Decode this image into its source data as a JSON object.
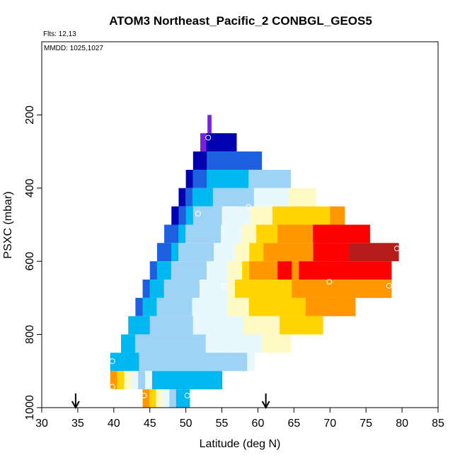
{
  "chart_data": {
    "type": "heatmap",
    "title": "ATOM3 Northeast_Pacific_2 CONBGL_GEOS5",
    "subtitle_flights": "Flts: 12,13",
    "subtitle_dates": "MMDD: 1025,1027",
    "xlabel": "Latitude (deg N)",
    "ylabel": "PSXC (mbar)",
    "xlim": [
      30,
      85
    ],
    "ylim": [
      1000,
      0
    ],
    "x_ticks": [
      30,
      35,
      40,
      45,
      50,
      55,
      60,
      65,
      70,
      75,
      80,
      85
    ],
    "y_ticks": [
      200,
      400,
      600,
      800,
      1000
    ],
    "flight_arrows_lat": [
      34.7,
      61.1
    ],
    "color_stops": [
      "#b71c1c",
      "#ff0000",
      "#ff9800",
      "#ffd400",
      "#fff9c4",
      "#e8f8ff",
      "#9fd3f5",
      "#00b8f0",
      "#1e5fe0",
      "#0000b0",
      "#7b1fe0"
    ],
    "rows": [
      {
        "p_top": 200,
        "p_bot": 250,
        "lat_start": 53.0,
        "lat_end": 53.5,
        "values": [
          10
        ]
      },
      {
        "p_top": 250,
        "p_bot": 300,
        "lat_start": 52.0,
        "lat_end": 57.0,
        "values": [
          10,
          9,
          9,
          9,
          9,
          9
        ]
      },
      {
        "p_top": 300,
        "p_bot": 350,
        "lat_start": 51.0,
        "lat_end": 60.5,
        "values": [
          9,
          9,
          8,
          8,
          8,
          8,
          8,
          8,
          8,
          8
        ]
      },
      {
        "p_top": 350,
        "p_bot": 400,
        "lat_start": 50.0,
        "lat_end": 64.5,
        "values": [
          9,
          8,
          8,
          7,
          7,
          7,
          7,
          7,
          7,
          6,
          6,
          6,
          6,
          6,
          6
        ]
      },
      {
        "p_top": 400,
        "p_bot": 450,
        "lat_start": 49.0,
        "lat_end": 68.0,
        "values": [
          9,
          8,
          7,
          7,
          7,
          6,
          6,
          6,
          6,
          6,
          6,
          5,
          5,
          5,
          5,
          5,
          4,
          4,
          4,
          4
        ]
      },
      {
        "p_top": 450,
        "p_bot": 500,
        "lat_start": 48.0,
        "lat_end": 72.0,
        "values": [
          9,
          8,
          7,
          6,
          6,
          6,
          6,
          5,
          5,
          5,
          5,
          4,
          4,
          4,
          3,
          3,
          3,
          3,
          3,
          3,
          3,
          3,
          2,
          2
        ]
      },
      {
        "p_top": 500,
        "p_bot": 550,
        "lat_start": 47.0,
        "lat_end": 75.5,
        "values": [
          8,
          8,
          7,
          6,
          6,
          6,
          6,
          6,
          5,
          5,
          5,
          4,
          4,
          3,
          3,
          3,
          2,
          2,
          2,
          2,
          2,
          1,
          1,
          1,
          1,
          1,
          1,
          1,
          1
        ]
      },
      {
        "p_top": 550,
        "p_bot": 600,
        "lat_start": 46.0,
        "lat_end": 79.5,
        "values": [
          8,
          8,
          7,
          6,
          6,
          6,
          6,
          6,
          5,
          5,
          5,
          4,
          4,
          3,
          3,
          2,
          2,
          2,
          2,
          2,
          2,
          2,
          1,
          1,
          1,
          1,
          1,
          0,
          0,
          0,
          0,
          0,
          0,
          0
        ]
      },
      {
        "p_top": 600,
        "p_bot": 650,
        "lat_start": 45.0,
        "lat_end": 78.5,
        "values": [
          8,
          7,
          7,
          6,
          6,
          6,
          6,
          6,
          5,
          5,
          5,
          4,
          4,
          3,
          2,
          2,
          2,
          2,
          1,
          1,
          2,
          1,
          1,
          1,
          1,
          1,
          1,
          1,
          1,
          1,
          1,
          1,
          1,
          1
        ]
      },
      {
        "p_top": 650,
        "p_bot": 700,
        "lat_start": 44.0,
        "lat_end": 78.5,
        "values": [
          8,
          7,
          7,
          6,
          6,
          6,
          6,
          6,
          5,
          5,
          5,
          5,
          4,
          3,
          3,
          3,
          3,
          3,
          3,
          3,
          3,
          2,
          2,
          2,
          2,
          2,
          2,
          2,
          2,
          2,
          2,
          2,
          2,
          2,
          2
        ]
      },
      {
        "p_top": 700,
        "p_bot": 750,
        "lat_start": 43.0,
        "lat_end": 73.5,
        "values": [
          8,
          7,
          7,
          6,
          6,
          6,
          6,
          6,
          5,
          5,
          5,
          5,
          5,
          4,
          4,
          4,
          3,
          3,
          3,
          3,
          3,
          3,
          3,
          3,
          2,
          2,
          2,
          2,
          2,
          2,
          2
        ]
      },
      {
        "p_top": 750,
        "p_bot": 800,
        "lat_start": 42.0,
        "lat_end": 69.0,
        "values": [
          7,
          7,
          7,
          6,
          6,
          6,
          6,
          6,
          6,
          5,
          5,
          5,
          5,
          5,
          5,
          5,
          4,
          4,
          4,
          4,
          4,
          3,
          3,
          3,
          3,
          3,
          3
        ]
      },
      {
        "p_top": 800,
        "p_bot": 850,
        "lat_start": 41.0,
        "lat_end": 64.5,
        "values": [
          7,
          7,
          6,
          6,
          6,
          6,
          6,
          6,
          6,
          6,
          6,
          6,
          5,
          5,
          5,
          5,
          5,
          5,
          5,
          5,
          4,
          4,
          4,
          4
        ]
      },
      {
        "p_top": 850,
        "p_bot": 900,
        "lat_start": 39.5,
        "lat_end": 59.5,
        "values": [
          7,
          7,
          7,
          7,
          6,
          6,
          6,
          6,
          6,
          6,
          6,
          6,
          6,
          6,
          6,
          6,
          6,
          6,
          6,
          5
        ]
      },
      {
        "p_top": 900,
        "p_bot": 950,
        "lat_start": 39.5,
        "lat_end": 55.0,
        "values": [
          2,
          3,
          4,
          5,
          6,
          5,
          7,
          7,
          7,
          7,
          7,
          7,
          7,
          7,
          7,
          7
        ]
      },
      {
        "p_top": 950,
        "p_bot": 1000,
        "lat_start": 44.0,
        "lat_end": 50.5,
        "values": [
          2,
          3,
          4,
          5,
          6,
          7,
          7
        ]
      }
    ],
    "sample_points": [
      {
        "lat": 53.1,
        "p": 262
      },
      {
        "lat": 51.7,
        "p": 470
      },
      {
        "lat": 58.7,
        "p": 451
      },
      {
        "lat": 79.3,
        "p": 565
      },
      {
        "lat": 55.3,
        "p": 667
      },
      {
        "lat": 69.9,
        "p": 656
      },
      {
        "lat": 78.2,
        "p": 667
      },
      {
        "lat": 39.8,
        "p": 873
      },
      {
        "lat": 39.8,
        "p": 943
      },
      {
        "lat": 44.2,
        "p": 967
      },
      {
        "lat": 50.2,
        "p": 967
      }
    ]
  }
}
